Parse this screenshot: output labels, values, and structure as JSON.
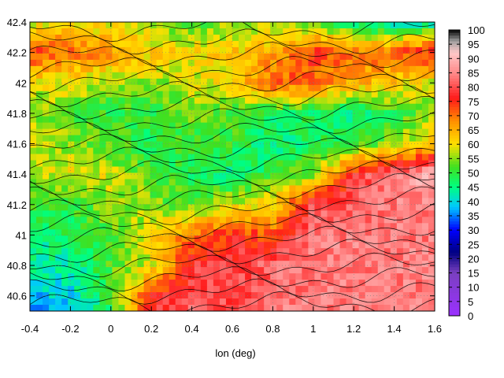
{
  "chart_data": {
    "type": "heatmap",
    "title": "",
    "xlabel": "lon (deg)",
    "ylabel": "",
    "xlim": [
      -0.4,
      1.6
    ],
    "ylim": [
      40.5,
      42.4
    ],
    "x_ticks": [
      "-0.4",
      "-0.2",
      "0",
      "0.2",
      "0.4",
      "0.6",
      "0.8",
      "1",
      "1.2",
      "1.4",
      "1.6"
    ],
    "y_ticks": [
      "40.6",
      "40.8",
      "41",
      "41.2",
      "41.4",
      "41.6",
      "41.8",
      "42",
      "42.2",
      "42.4"
    ],
    "grid": true,
    "contours": true,
    "colorbar": {
      "min": 0,
      "max": 100,
      "ticks": [
        "0",
        "5",
        "10",
        "15",
        "20",
        "25",
        "30",
        "35",
        "40",
        "45",
        "50",
        "55",
        "60",
        "65",
        "70",
        "75",
        "80",
        "85",
        "90",
        "95",
        "100"
      ],
      "stops": [
        {
          "value": 0,
          "color": "#9b30ff"
        },
        {
          "value": 15,
          "color": "#7a3fc0"
        },
        {
          "value": 22,
          "color": "#000080"
        },
        {
          "value": 30,
          "color": "#0000ff"
        },
        {
          "value": 38,
          "color": "#00c8ff"
        },
        {
          "value": 45,
          "color": "#00ff80"
        },
        {
          "value": 52,
          "color": "#40e020"
        },
        {
          "value": 60,
          "color": "#ffe000"
        },
        {
          "value": 68,
          "color": "#ff9000"
        },
        {
          "value": 76,
          "color": "#ff1a1a"
        },
        {
          "value": 84,
          "color": "#ff8080"
        },
        {
          "value": 92,
          "color": "#ffc8c8"
        },
        {
          "value": 96,
          "color": "#a0a0a0"
        },
        {
          "value": 100,
          "color": "#000000"
        }
      ]
    },
    "field": {
      "description_regions": [],
      "grid_x": [
        -0.4,
        -0.2,
        0.0,
        0.2,
        0.4,
        0.6,
        0.8,
        1.0,
        1.2,
        1.4,
        1.6
      ],
      "grid_y": [
        42.4,
        42.2,
        42.0,
        41.8,
        41.6,
        41.4,
        41.2,
        41.0,
        40.8,
        40.6,
        40.5
      ],
      "values": [
        [
          58,
          60,
          58,
          55,
          52,
          55,
          55,
          52,
          45,
          40,
          42
        ],
        [
          75,
          70,
          68,
          62,
          60,
          62,
          65,
          75,
          70,
          72,
          78
        ],
        [
          58,
          60,
          55,
          55,
          58,
          60,
          72,
          70,
          65,
          62,
          58
        ],
        [
          55,
          52,
          50,
          50,
          55,
          52,
          48,
          48,
          45,
          50,
          55
        ],
        [
          58,
          55,
          52,
          48,
          50,
          50,
          45,
          48,
          50,
          55,
          62
        ],
        [
          55,
          60,
          58,
          52,
          48,
          45,
          50,
          55,
          78,
          85,
          90
        ],
        [
          50,
          50,
          55,
          55,
          52,
          58,
          62,
          80,
          82,
          84,
          84
        ],
        [
          45,
          48,
          52,
          60,
          70,
          75,
          72,
          84,
          84,
          84,
          84
        ],
        [
          45,
          42,
          52,
          58,
          78,
          80,
          82,
          84,
          84,
          84,
          84
        ],
        [
          38,
          40,
          50,
          75,
          80,
          78,
          82,
          84,
          84,
          84,
          84
        ],
        [
          35,
          38,
          48,
          78,
          82,
          80,
          84,
          84,
          84,
          84,
          84
        ]
      ]
    }
  }
}
